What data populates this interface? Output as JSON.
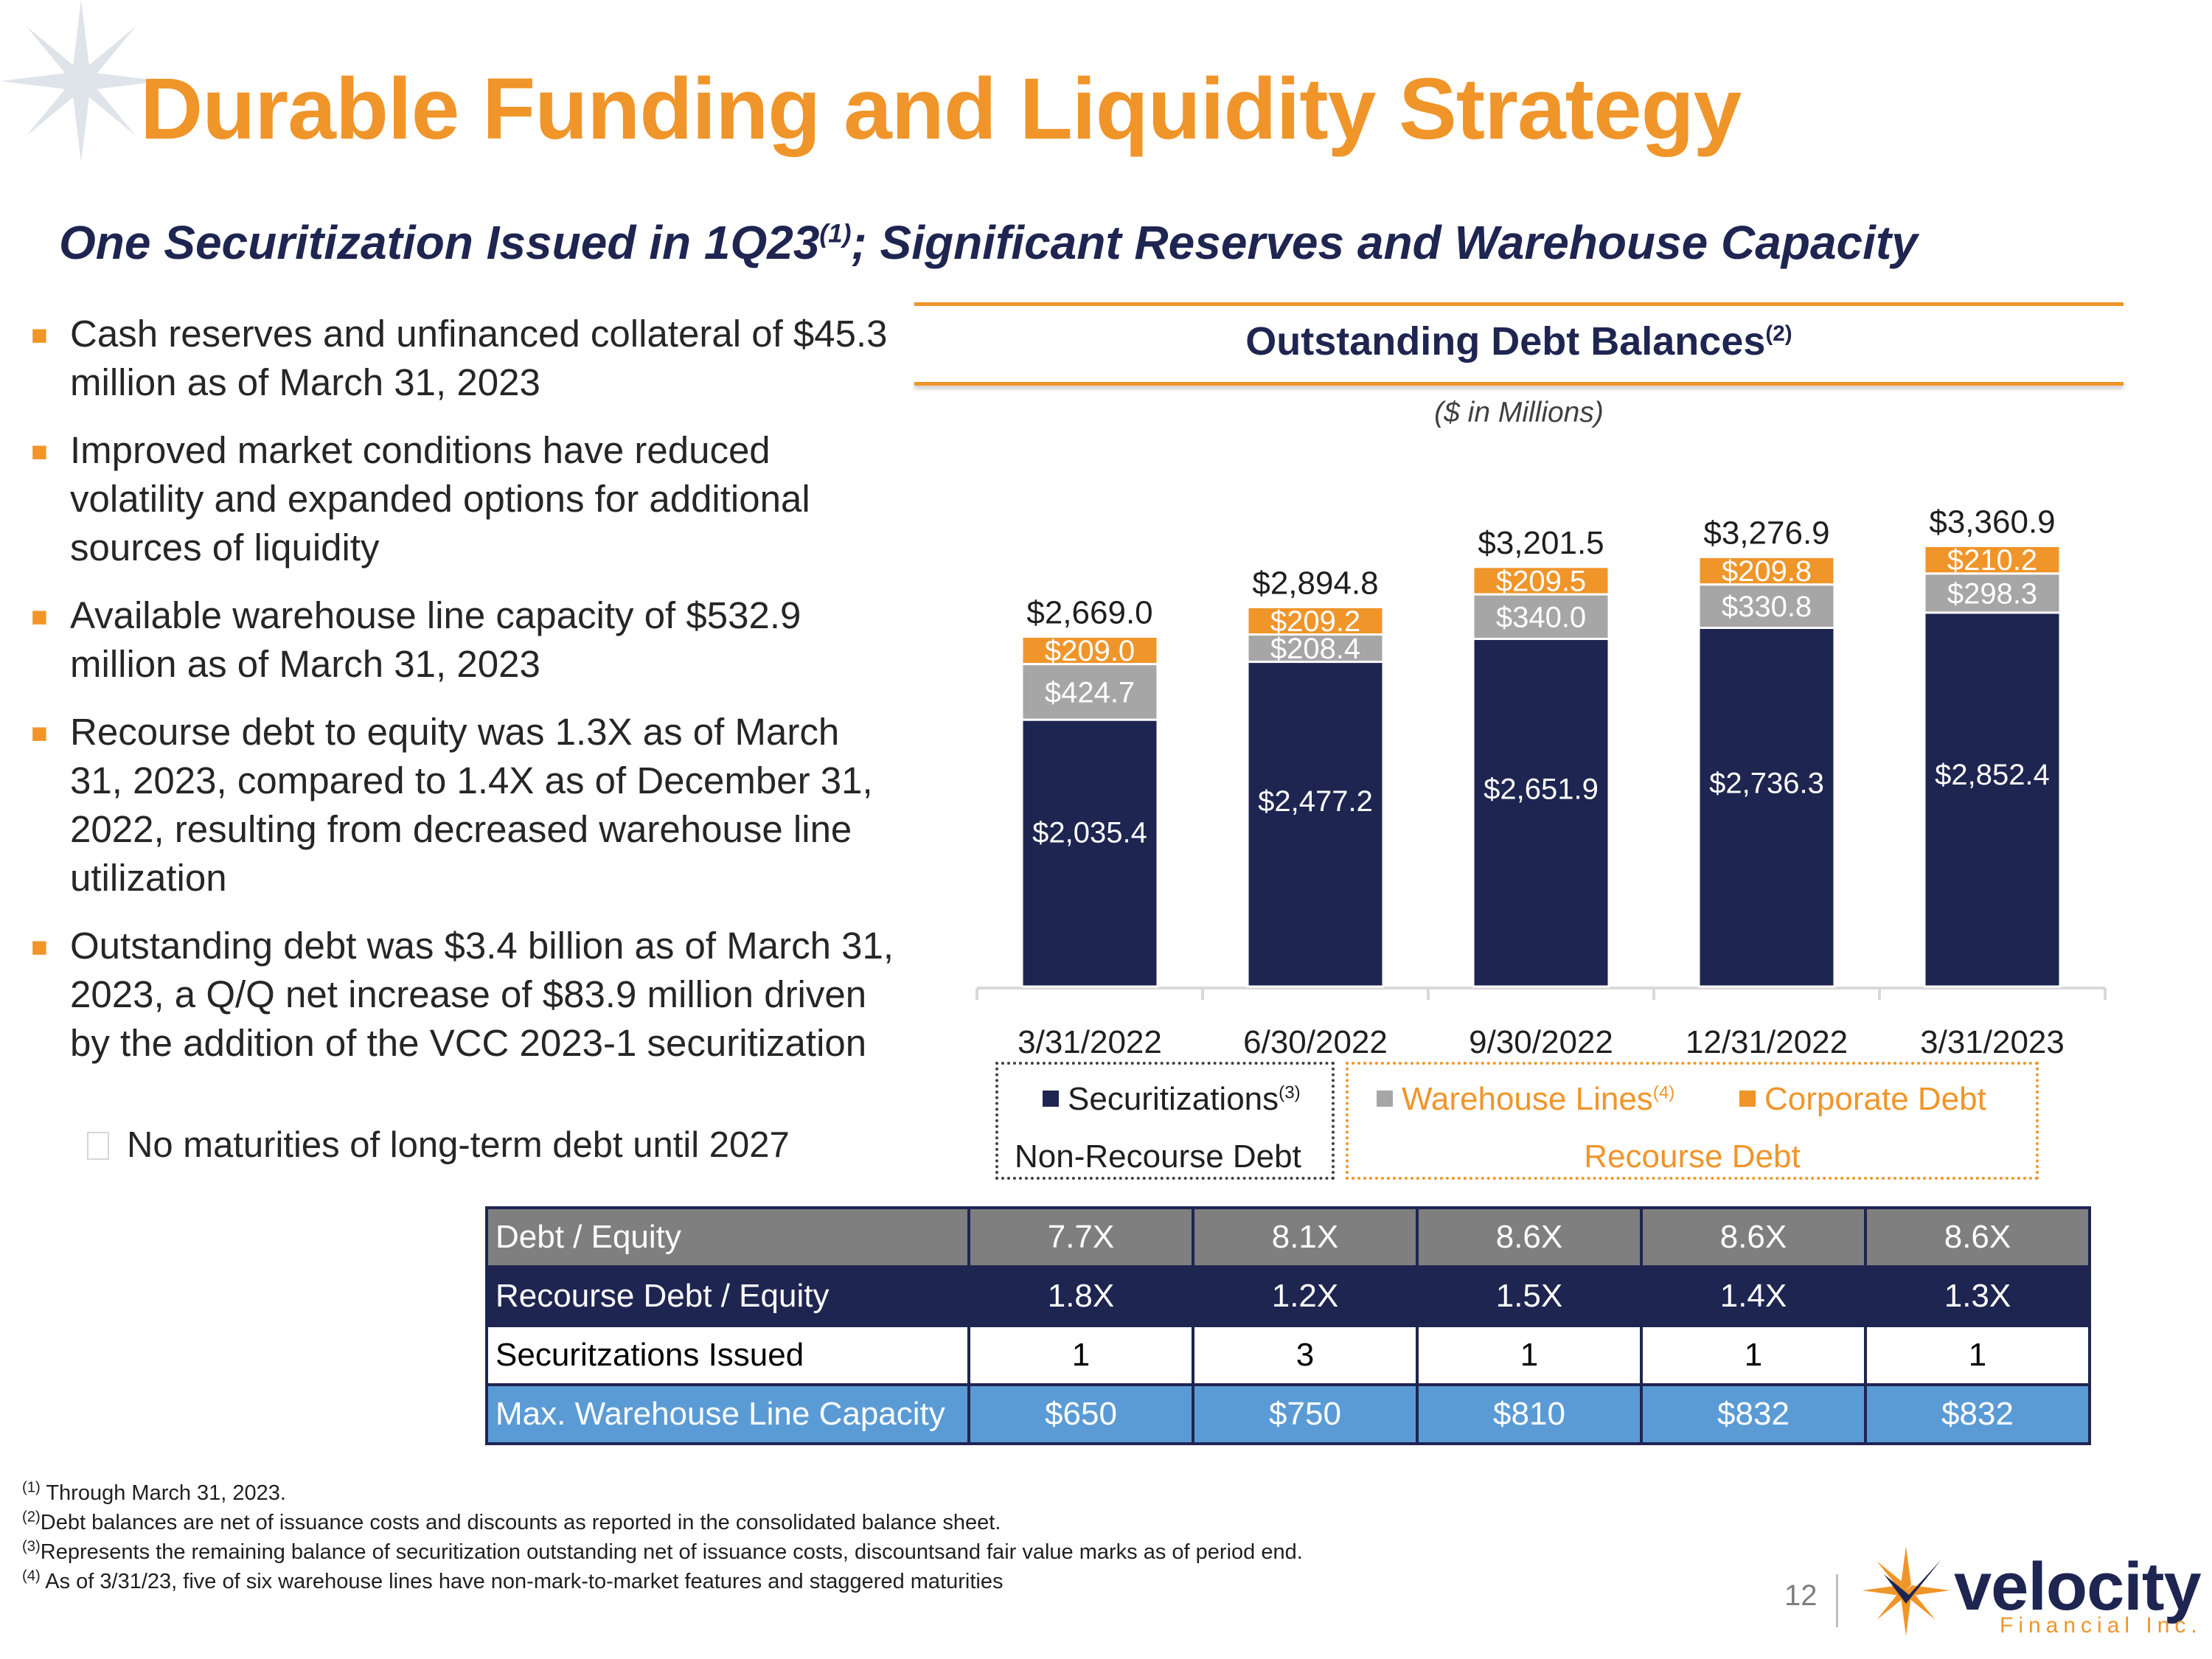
{
  "title": "Durable Funding and Liquidity Strategy",
  "subtitle": {
    "text": "One Securitization Issued in 1Q23",
    "sup": "(1)",
    "text_after": "; Significant Reserves and Warehouse Capacity"
  },
  "bullets": [
    "Cash reserves and unfinanced collateral of $45.3 million as of March 31, 2023",
    "Improved market conditions have reduced volatility and expanded options for additional sources of liquidity",
    "Available warehouse line capacity of $532.9 million as of March 31, 2023",
    "Recourse debt to equity was 1.3X as of March 31, 2023, compared to 1.4X as of December 31, 2022, resulting from decreased warehouse line utilization",
    "Outstanding debt was $3.4 billion as of March 31, 2023, a Q/Q net increase of $83.9 million driven by the addition of the VCC 2023-1 securitization"
  ],
  "sub_bullet": "No maturities of long-term debt until 2027",
  "chart_header": {
    "title": "Outstanding Debt Balances",
    "sup": "(2)",
    "units": "($ in Millions)"
  },
  "chart_data": {
    "type": "bar",
    "stacked": true,
    "title": "Outstanding Debt Balances",
    "ylabel": "$ in Millions",
    "categories": [
      "3/31/2022",
      "6/30/2022",
      "9/30/2022",
      "12/31/2022",
      "3/31/2023"
    ],
    "series": [
      {
        "name": "Securitizations",
        "color": "#1f2551",
        "values": [
          2035.4,
          2477.2,
          2651.9,
          2736.3,
          2852.4
        ],
        "labels": [
          "$2,035.4",
          "$2,477.2",
          "$2,651.9",
          "$2,736.3",
          "$2,852.4"
        ]
      },
      {
        "name": "Warehouse Lines",
        "color": "#a6a6a6",
        "values": [
          424.7,
          208.4,
          340.0,
          330.8,
          298.3
        ],
        "labels": [
          "$424.7",
          "$208.4",
          "$340.0",
          "$330.8",
          "$298.3"
        ]
      },
      {
        "name": "Corporate Debt",
        "color": "#f0952a",
        "values": [
          209.0,
          209.2,
          209.5,
          209.8,
          210.2
        ],
        "labels": [
          "$209.0",
          "$209.2",
          "$209.5",
          "$209.8",
          "$210.2"
        ]
      }
    ],
    "totals": [
      2669.0,
      2894.8,
      3201.5,
      3276.9,
      3360.9
    ],
    "total_labels": [
      "$2,669.0",
      "$2,894.8",
      "$3,201.5",
      "$3,276.9",
      "$3,360.9"
    ]
  },
  "legend": {
    "securitizations": "Securitizations",
    "securitizations_sup": "(3)",
    "warehouse": "Warehouse Lines",
    "warehouse_sup": "(4)",
    "corporate": "Corporate Debt",
    "non_recourse": "Non-Recourse Debt",
    "recourse": "Recourse Debt"
  },
  "table": {
    "rows": [
      {
        "label": "Debt / Equity",
        "values": [
          "7.7X",
          "8.1X",
          "8.6X",
          "8.6X",
          "8.6X"
        ]
      },
      {
        "label": "Recourse Debt / Equity",
        "values": [
          "1.8X",
          "1.2X",
          "1.5X",
          "1.4X",
          "1.3X"
        ]
      },
      {
        "label": "Securitzations Issued",
        "values": [
          "1",
          "3",
          "1",
          "1",
          "1"
        ]
      },
      {
        "label": "Max. Warehouse Line Capacity",
        "values": [
          "$650",
          "$750",
          "$810",
          "$832",
          "$832"
        ]
      }
    ]
  },
  "footnotes": [
    {
      "mark": "(1)",
      "text": "Through March 31, 2023."
    },
    {
      "mark": "(2)",
      "text": "Debt balances are net of issuance costs and discounts as reported in the consolidated balance sheet."
    },
    {
      "mark": "(3)",
      "text": "Represents the remaining balance of securitization outstanding net of issuance costs, discountsand fair value marks as of period end."
    },
    {
      "mark": "(4)",
      "text": "As of 3/31/23, five of six warehouse lines have non-mark-to-market features and staggered maturities"
    }
  ],
  "page_number": "12",
  "logo": {
    "name": "velocity",
    "sub": "Financial Inc."
  },
  "colors": {
    "accent": "#f0952a",
    "navy": "#1f2551",
    "gray": "#a6a6a6",
    "blue": "#5b9bd5"
  }
}
